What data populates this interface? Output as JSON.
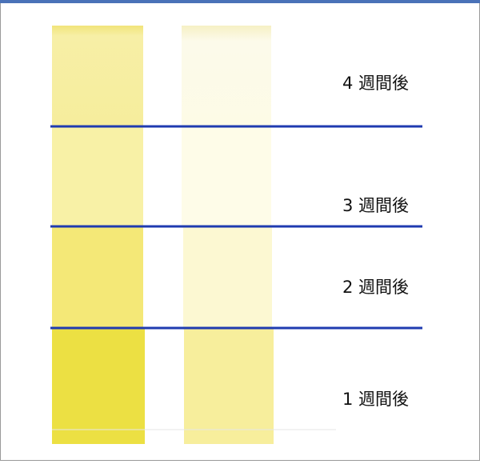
{
  "labels": [
    "4 週間後",
    "3 週間後",
    "2 週間後",
    "1 週間後"
  ]
}
